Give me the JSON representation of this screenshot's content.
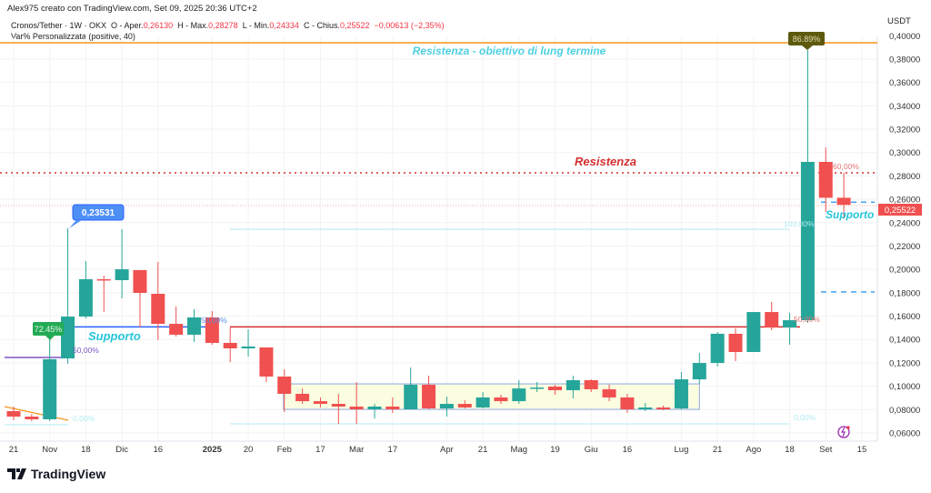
{
  "header": {
    "credit": "Alex975 creato con TradingView.com, Set 09, 2025 20:36 UTC+2",
    "symbol": "Cronos/Tether · 1W · OKX",
    "open_label": "O - Aper.",
    "open": "0,26130",
    "high_label": "H - Max.",
    "high": "0,28278",
    "low_label": "L - Min.",
    "low": "0,24334",
    "close_label": "C - Chius.",
    "close": "0,25522",
    "change": "−0,00613 (−2,35%)",
    "indicator": "Var% Personalizzata (positive, 40)"
  },
  "price_axis": {
    "currency": "USDT",
    "ticks": [
      "0,06000",
      "0,08000",
      "0,10000",
      "0,12000",
      "0,14000",
      "0,16000",
      "0,18000",
      "0,20000",
      "0,22000",
      "0,24000",
      "0,26000",
      "0,28000",
      "0,30000",
      "0,32000",
      "0,34000",
      "0,36000",
      "0,38000",
      "0,40000"
    ],
    "last_price": "0,25522"
  },
  "time_axis": {
    "labels": [
      {
        "text": "21",
        "i": 0
      },
      {
        "text": "Nov",
        "i": 2
      },
      {
        "text": "18",
        "i": 4
      },
      {
        "text": "Dic",
        "i": 6
      },
      {
        "text": "16",
        "i": 8
      },
      {
        "text": "2025",
        "i": 11,
        "bold": true
      },
      {
        "text": "20",
        "i": 13
      },
      {
        "text": "Feb",
        "i": 15
      },
      {
        "text": "17",
        "i": 17
      },
      {
        "text": "Mar",
        "i": 19
      },
      {
        "text": "17",
        "i": 21
      },
      {
        "text": "Apr",
        "i": 24
      },
      {
        "text": "21",
        "i": 26
      },
      {
        "text": "Mag",
        "i": 28
      },
      {
        "text": "19",
        "i": 30
      },
      {
        "text": "Giu",
        "i": 32
      },
      {
        "text": "16",
        "i": 34
      },
      {
        "text": "Lug",
        "i": 37
      },
      {
        "text": "21",
        "i": 39
      },
      {
        "text": "Ago",
        "i": 41
      },
      {
        "text": "18",
        "i": 43
      },
      {
        "text": "Set",
        "i": 45
      },
      {
        "text": "15",
        "i": 47
      }
    ]
  },
  "colors": {
    "up": "#26a69a",
    "down": "#f0504f",
    "resistance": "#d32f2f",
    "support": "#2962ff",
    "target": "#f7931a",
    "cyan_text": "#4dd0e1"
  },
  "chart_data": {
    "type": "candlestick",
    "title": "Cronos/Tether · 1W · OKX",
    "ylabel": "USDT",
    "ylim": [
      0.055,
      0.41
    ],
    "grid": true,
    "candles": [
      [
        0.0787,
        0.0826,
        0.0709,
        0.074
      ],
      [
        0.074,
        0.0763,
        0.0701,
        0.0717
      ],
      [
        0.0717,
        0.141,
        0.0701,
        0.1231
      ],
      [
        0.1238,
        0.23531,
        0.1192,
        0.1596
      ],
      [
        0.1596,
        0.2071,
        0.1581,
        0.1916
      ],
      [
        0.1916,
        0.1947,
        0.1635,
        0.1908
      ],
      [
        0.1908,
        0.2344,
        0.1752,
        0.2001
      ],
      [
        0.1994,
        0.1994,
        0.1503,
        0.1799
      ],
      [
        0.1791,
        0.2064,
        0.1394,
        0.1534
      ],
      [
        0.1534,
        0.1682,
        0.1425,
        0.1441
      ],
      [
        0.1441,
        0.1659,
        0.1379,
        0.1589
      ],
      [
        0.1589,
        0.1643,
        0.1355,
        0.1371
      ],
      [
        0.1371,
        0.1503,
        0.1207,
        0.1324
      ],
      [
        0.1324,
        0.1487,
        0.1254,
        0.134
      ],
      [
        0.1332,
        0.1332,
        0.1036,
        0.1083
      ],
      [
        0.1083,
        0.1145,
        0.0779,
        0.0935
      ],
      [
        0.0935,
        0.0981,
        0.0849,
        0.0872
      ],
      [
        0.0872,
        0.0904,
        0.0818,
        0.0849
      ],
      [
        0.0849,
        0.0935,
        0.0678,
        0.0826
      ],
      [
        0.0826,
        0.1036,
        0.0678,
        0.0802
      ],
      [
        0.0802,
        0.0849,
        0.0725,
        0.0826
      ],
      [
        0.0826,
        0.0904,
        0.0771,
        0.0802
      ],
      [
        0.0802,
        0.1161,
        0.0802,
        0.1013
      ],
      [
        0.1013,
        0.109,
        0.0802,
        0.081
      ],
      [
        0.081,
        0.0911,
        0.074,
        0.0849
      ],
      [
        0.0849,
        0.088,
        0.081,
        0.0818
      ],
      [
        0.0818,
        0.095,
        0.081,
        0.0904
      ],
      [
        0.0904,
        0.0927,
        0.0849,
        0.0872
      ],
      [
        0.0872,
        0.1052,
        0.0849,
        0.0981
      ],
      [
        0.0981,
        0.1036,
        0.095,
        0.0989
      ],
      [
        0.0997,
        0.1013,
        0.0927,
        0.0966
      ],
      [
        0.0966,
        0.109,
        0.0896,
        0.1052
      ],
      [
        0.1052,
        0.1059,
        0.095,
        0.0974
      ],
      [
        0.0974,
        0.1013,
        0.0872,
        0.0904
      ],
      [
        0.0904,
        0.0935,
        0.0771,
        0.0802
      ],
      [
        0.0802,
        0.0857,
        0.0787,
        0.0818
      ],
      [
        0.0818,
        0.0834,
        0.0795,
        0.0802
      ],
      [
        0.081,
        0.1122,
        0.0802,
        0.1059
      ],
      [
        0.1059,
        0.1285,
        0.102,
        0.1199
      ],
      [
        0.1199,
        0.1464,
        0.1168,
        0.1449
      ],
      [
        0.1449,
        0.1495,
        0.1215,
        0.1293
      ],
      [
        0.1293,
        0.1635,
        0.1293,
        0.1635
      ],
      [
        0.1635,
        0.1721,
        0.148,
        0.1503
      ],
      [
        0.1503,
        0.1628,
        0.1355,
        0.1565
      ],
      [
        0.1565,
        0.3878,
        0.1542,
        0.292
      ],
      [
        0.292,
        0.3044,
        0.2492,
        0.2613
      ],
      [
        0.2613,
        0.28278,
        0.24334,
        0.25522
      ]
    ],
    "candle_fields": [
      "open",
      "high",
      "low",
      "close"
    ],
    "annotations": {
      "target_line": {
        "price": 0.394,
        "text": "Resistenza - obiettivo di lung termine"
      },
      "resistance_dotted": {
        "price": 0.2827,
        "text": "Resistenza"
      },
      "support_left": {
        "price": 0.1508,
        "text": "Supporto"
      },
      "support_right": {
        "text": "Supporto",
        "prices": [
          0.2575,
          0.1808
        ]
      },
      "resistance_mid": {
        "price": 0.1508
      },
      "range_box": {
        "from": 15,
        "to": 38,
        "top": 0.102,
        "bottom": 0.0802
      },
      "labels": {
        "pct_7245": "72.45%",
        "high_23531": "0,23531",
        "pct_8689": "86.89%",
        "fib50_a": "50,00%",
        "fib0_a": "0,00%",
        "fib50_b": "50,00%",
        "fib100_c": "100,00%",
        "fib0_c": "0,00%",
        "fib50_c": "50,00%",
        "fib60": "60,00%"
      }
    }
  }
}
